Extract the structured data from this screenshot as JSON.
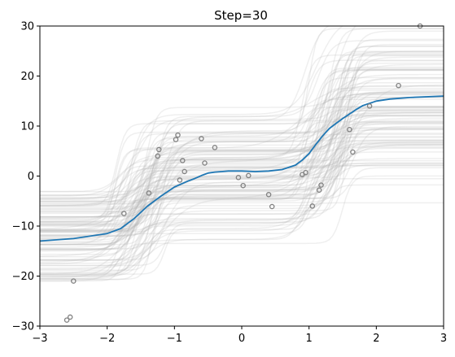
{
  "chart_data": {
    "type": "line",
    "title": "Step=30",
    "xlabel": "",
    "ylabel": "",
    "xlim": [
      -3,
      3
    ],
    "ylim": [
      -30,
      30
    ],
    "grid": false,
    "legend": "none",
    "x_ticks": [
      -3,
      -2,
      -1,
      0,
      1,
      2,
      3
    ],
    "y_ticks": [
      -30,
      -20,
      -10,
      0,
      10,
      20,
      30
    ],
    "colors": {
      "mean_line": "#1f77b4",
      "samples": "#b8b8b8",
      "points": "#808080"
    },
    "series": [
      {
        "role": "posterior-mean",
        "x": [
          -3.0,
          -2.5,
          -2.0,
          -1.8,
          -1.6,
          -1.4,
          -1.2,
          -1.0,
          -0.9,
          -0.8,
          -0.7,
          -0.6,
          -0.5,
          -0.4,
          -0.3,
          -0.2,
          0.0,
          0.2,
          0.4,
          0.6,
          0.8,
          0.9,
          1.0,
          1.1,
          1.2,
          1.3,
          1.4,
          1.5,
          1.6,
          1.7,
          1.8,
          2.0,
          2.2,
          2.5,
          3.0
        ],
        "values": [
          -13.0,
          -12.5,
          -11.5,
          -10.5,
          -8.5,
          -6.0,
          -4.0,
          -2.2,
          -1.6,
          -1.0,
          -0.5,
          0.1,
          0.6,
          0.8,
          0.9,
          1.0,
          1.0,
          0.9,
          1.0,
          1.3,
          2.2,
          3.2,
          4.5,
          6.3,
          8.0,
          9.5,
          10.5,
          11.5,
          12.4,
          13.3,
          14.1,
          15.0,
          15.4,
          15.7,
          16.0
        ]
      }
    ],
    "points": {
      "x": [
        -2.6,
        -2.55,
        -2.5,
        -1.75,
        -1.38,
        -1.25,
        -1.23,
        -0.98,
        -0.95,
        -0.92,
        -0.88,
        -0.85,
        -0.6,
        -0.55,
        -0.4,
        -0.05,
        0.02,
        0.1,
        0.4,
        0.45,
        0.9,
        0.95,
        1.05,
        1.15,
        1.18,
        1.6,
        1.65,
        1.9,
        2.33,
        2.65
      ],
      "y": [
        -28.8,
        -28.2,
        -21.0,
        -7.5,
        -3.4,
        4.0,
        5.3,
        7.3,
        8.2,
        -0.8,
        3.1,
        0.9,
        7.5,
        2.6,
        5.7,
        -0.3,
        -1.9,
        0.1,
        -3.7,
        -6.1,
        0.3,
        0.7,
        -6.0,
        -2.8,
        -1.8,
        9.3,
        4.8,
        14.0,
        18.1,
        30.0
      ]
    }
  }
}
